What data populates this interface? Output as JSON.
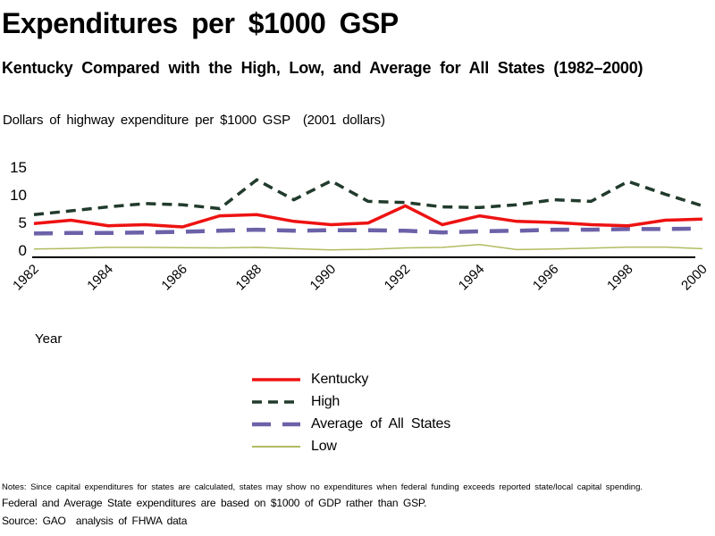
{
  "header": {
    "title": "Expenditures per $1000 GSP",
    "subtitle": "Kentucky Compared with the High, Low, and Average for All States (1982–2000)",
    "axis_description": "Dollars of highway expenditure per $1000 GSP  (2001 dollars)"
  },
  "chart_data": {
    "type": "line",
    "x": [
      1982,
      1983,
      1984,
      1985,
      1986,
      1987,
      1988,
      1989,
      1990,
      1991,
      1992,
      1993,
      1994,
      1995,
      1996,
      1997,
      1998,
      1999,
      2000
    ],
    "x_tick_labels": [
      "1982",
      "1984",
      "1986",
      "1988",
      "1990",
      "1992",
      "1994",
      "1996",
      "1998",
      "2000"
    ],
    "xlabel": "Year",
    "ylim": [
      0,
      15
    ],
    "yticks": [
      0,
      5,
      10,
      15
    ],
    "grid": false,
    "legend_position": "below-center",
    "series": [
      {
        "name": "Kentucky",
        "color": "#ee1212",
        "style": "solid",
        "width": 3.5,
        "values": [
          4.8,
          5.4,
          4.4,
          4.6,
          4.2,
          6.2,
          6.4,
          5.2,
          4.6,
          4.9,
          8.0,
          4.6,
          6.2,
          5.2,
          5.0,
          4.6,
          4.4,
          5.4,
          5.6
        ]
      },
      {
        "name": "High",
        "color": "#213b2c",
        "style": "dashed",
        "dash": "11 7",
        "width": 3.5,
        "values": [
          6.4,
          7.1,
          7.8,
          8.4,
          8.2,
          7.5,
          12.7,
          9.1,
          12.5,
          8.8,
          8.6,
          7.8,
          7.7,
          8.2,
          9.1,
          8.8,
          12.4,
          10.1,
          8.0
        ]
      },
      {
        "name": "Average of All States",
        "color": "#6b62a8",
        "style": "dashed",
        "dash": "21 13",
        "width": 4.5,
        "values": [
          3.0,
          3.1,
          3.1,
          3.2,
          3.3,
          3.5,
          3.7,
          3.5,
          3.6,
          3.6,
          3.5,
          3.2,
          3.4,
          3.5,
          3.7,
          3.7,
          3.8,
          3.8,
          3.9
        ]
      },
      {
        "name": "Low",
        "color": "#b2bb60",
        "style": "solid",
        "width": 1.5,
        "values": [
          0.2,
          0.3,
          0.5,
          0.5,
          0.45,
          0.4,
          0.5,
          0.25,
          0.05,
          0.15,
          0.4,
          0.5,
          1.0,
          0.1,
          0.2,
          0.35,
          0.55,
          0.55,
          0.25
        ]
      }
    ]
  },
  "footer": {
    "note1": "Notes: Since capital expenditures for states are calculated, states may show no expenditures when federal funding exceeds reported state/local capital spending.",
    "note2": "Federal and Average State expenditures are based on $1000 of GDP rather than GSP.",
    "source": "Source: GAO  analysis of FHWA data"
  }
}
